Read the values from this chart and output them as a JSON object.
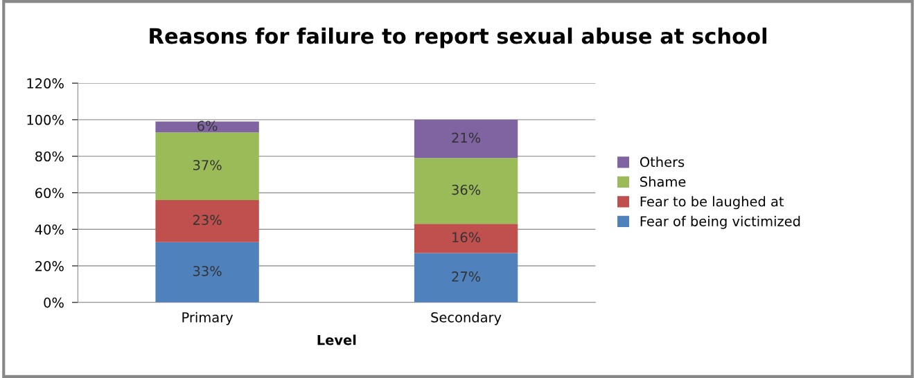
{
  "chart_data": {
    "type": "bar",
    "title": "Reasons for failure to report sexual abuse at school",
    "xlabel": "Level",
    "categories": [
      "Primary",
      "Secondary"
    ],
    "stacked": true,
    "series": [
      {
        "name": "Fear of being victimized",
        "color": "#4f81bd",
        "values": [
          33,
          27
        ],
        "value_labels": [
          "33%",
          "27%"
        ]
      },
      {
        "name": "Fear to be laughed at",
        "color": "#c0504d",
        "values": [
          23,
          16
        ],
        "value_labels": [
          "23%",
          "16%"
        ]
      },
      {
        "name": "Shame",
        "color": "#9bbb59",
        "values": [
          37,
          36
        ],
        "value_labels": [
          "37%",
          "36%"
        ]
      },
      {
        "name": "Others",
        "color": "#8064a2",
        "values": [
          6,
          21
        ],
        "value_labels": [
          "6%",
          "21%"
        ]
      }
    ],
    "ylim": [
      0,
      120
    ],
    "yticks": [
      {
        "value": 0,
        "label": "0%"
      },
      {
        "value": 20,
        "label": "20%"
      },
      {
        "value": 40,
        "label": "40%"
      },
      {
        "value": 60,
        "label": "60%"
      },
      {
        "value": 80,
        "label": "80%"
      },
      {
        "value": 100,
        "label": "100%"
      },
      {
        "value": 120,
        "label": "120%"
      }
    ],
    "grid": "y",
    "legend": "right"
  }
}
